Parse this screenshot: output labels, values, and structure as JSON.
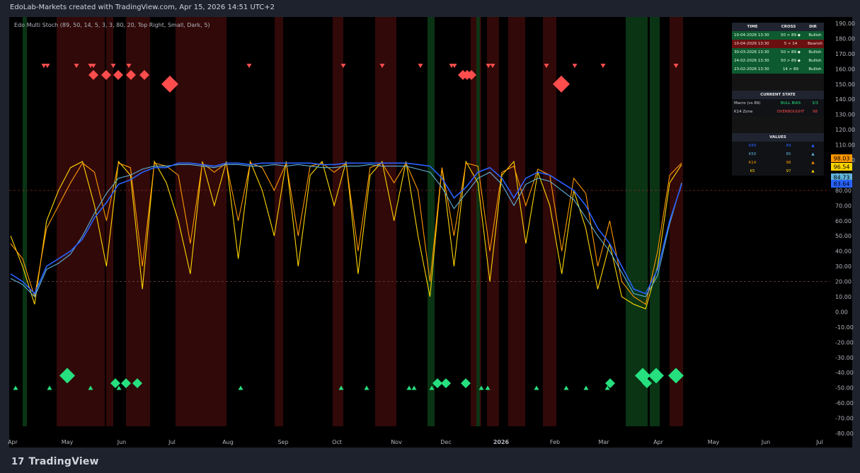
{
  "header": {
    "text": "EdoLab-Markets created with TradingView.com, Apr 15, 2026 14:51 UTC+2"
  },
  "indicator_title": "Edo Multi Stoch (89, 50, 14, 5, 3, 3, 80, 20, Top Right, Small, Dark, 5)",
  "footer": {
    "brand": "TradingView",
    "brand_icon": "tradingview-logo-icon"
  },
  "table": {
    "headers": [
      "TIME",
      "CROSS",
      "DIR"
    ],
    "rows": [
      {
        "time": "10-04-2026 13:30",
        "cross": "50 > 89 ◆",
        "dir": "Bullish",
        "kind": "bull"
      },
      {
        "time": "10-04-2026 13:30",
        "cross": "5 < 14",
        "dir": "Bearish",
        "kind": "bear"
      },
      {
        "time": "30-03-2026 13:30",
        "cross": "50 > 89 ◆",
        "dir": "Bullish",
        "kind": "bull"
      },
      {
        "time": "24-02-2026 13:30",
        "cross": "50 > 89 ◆",
        "dir": "Bullish",
        "kind": "bull"
      },
      {
        "time": "23-02-2026 13:30",
        "cross": "14 > 89",
        "dir": "Bullish",
        "kind": "bull"
      }
    ],
    "state_title": "CURRENT STATE",
    "state": [
      {
        "label": "Macro (vs 89)",
        "value": "BULL BIAS",
        "extra": "3/3",
        "color": "#26e07f"
      },
      {
        "label": "K14 Zone",
        "value": "OVERBOUGHT",
        "extra": "98",
        "color": "#ff4d4d"
      }
    ],
    "values_title": "VALUES",
    "values": [
      {
        "label": "K89",
        "value": "84",
        "arrow": "▲",
        "color": "#2962ff"
      },
      {
        "label": "K50",
        "value": "85",
        "arrow": "▲",
        "color": "#5fb3d9"
      },
      {
        "label": "K14",
        "value": "98",
        "arrow": "▲",
        "color": "#ff9800"
      },
      {
        "label": "K5",
        "value": "97",
        "arrow": "▲",
        "color": "#ffd600"
      }
    ]
  },
  "chart_data": {
    "type": "line",
    "ylim": [
      -80,
      190
    ],
    "y_ticks": [
      190,
      180,
      170,
      160,
      150,
      140,
      130,
      120,
      110,
      100,
      90,
      80,
      70,
      60,
      50,
      40,
      30,
      20,
      10,
      0,
      -10,
      -20,
      -30,
      -40,
      -50,
      -60,
      -70,
      -80
    ],
    "x_labels": [
      "Apr",
      "May",
      "Jun",
      "Jul",
      "Aug",
      "Sep",
      "Oct",
      "Nov",
      "Dec",
      "2026",
      "Feb",
      "Mar",
      "Apr",
      "May",
      "Jun",
      "Jul"
    ],
    "levels": [
      80,
      20
    ],
    "last_values": [
      {
        "value": "98.03",
        "color": "#ff9800"
      },
      {
        "value": "96.54",
        "color": "#ffd600"
      },
      {
        "value": "84.73",
        "color": "#5fb3d9"
      },
      {
        "value": "83.64",
        "color": "#2962ff"
      }
    ],
    "series": [
      {
        "name": "K89",
        "color": "#2962ff",
        "values": [
          25,
          20,
          12,
          30,
          35,
          40,
          48,
          62,
          72,
          84,
          87,
          92,
          95,
          95,
          98,
          98,
          97,
          96,
          98,
          98,
          97,
          98,
          98,
          98,
          98,
          98,
          97,
          97,
          98,
          98,
          98,
          98,
          98,
          98,
          97,
          96,
          88,
          75,
          82,
          92,
          95,
          88,
          75,
          88,
          92,
          90,
          85,
          80,
          70,
          55,
          45,
          30,
          15,
          12,
          28,
          60,
          84
        ]
      },
      {
        "name": "K50",
        "color": "#5fb3d9",
        "values": [
          22,
          18,
          10,
          28,
          32,
          38,
          50,
          65,
          78,
          88,
          90,
          94,
          96,
          96,
          97,
          97,
          96,
          95,
          97,
          97,
          96,
          96,
          97,
          96,
          97,
          96,
          95,
          95,
          96,
          96,
          97,
          96,
          96,
          96,
          94,
          92,
          82,
          68,
          78,
          88,
          92,
          84,
          70,
          84,
          88,
          86,
          80,
          74,
          62,
          50,
          40,
          26,
          12,
          10,
          24,
          58,
          85
        ]
      },
      {
        "name": "K14",
        "color": "#ff9800",
        "values": [
          45,
          35,
          10,
          55,
          70,
          85,
          98,
          92,
          60,
          98,
          95,
          30,
          98,
          96,
          90,
          45,
          98,
          92,
          98,
          60,
          98,
          95,
          80,
          98,
          50,
          96,
          98,
          92,
          98,
          40,
          95,
          98,
          85,
          98,
          80,
          20,
          95,
          50,
          98,
          96,
          40,
          92,
          96,
          70,
          94,
          90,
          40,
          88,
          78,
          30,
          60,
          20,
          10,
          5,
          40,
          90,
          98
        ]
      },
      {
        "name": "K5",
        "color": "#ffd600",
        "values": [
          50,
          30,
          5,
          60,
          80,
          95,
          99,
          70,
          30,
          99,
          90,
          15,
          99,
          85,
          60,
          25,
          99,
          70,
          99,
          35,
          99,
          80,
          50,
          99,
          30,
          90,
          99,
          70,
          99,
          25,
          90,
          99,
          60,
          99,
          50,
          10,
          95,
          30,
          99,
          85,
          20,
          90,
          99,
          45,
          92,
          70,
          25,
          80,
          55,
          15,
          45,
          10,
          5,
          2,
          30,
          85,
          97
        ]
      }
    ],
    "markers": {
      "bearish_small": [
        "▼"
      ],
      "bullish_small": [
        "▲"
      ],
      "bearish_big": [
        "◆"
      ],
      "bullish_big": [
        "◆"
      ]
    }
  }
}
